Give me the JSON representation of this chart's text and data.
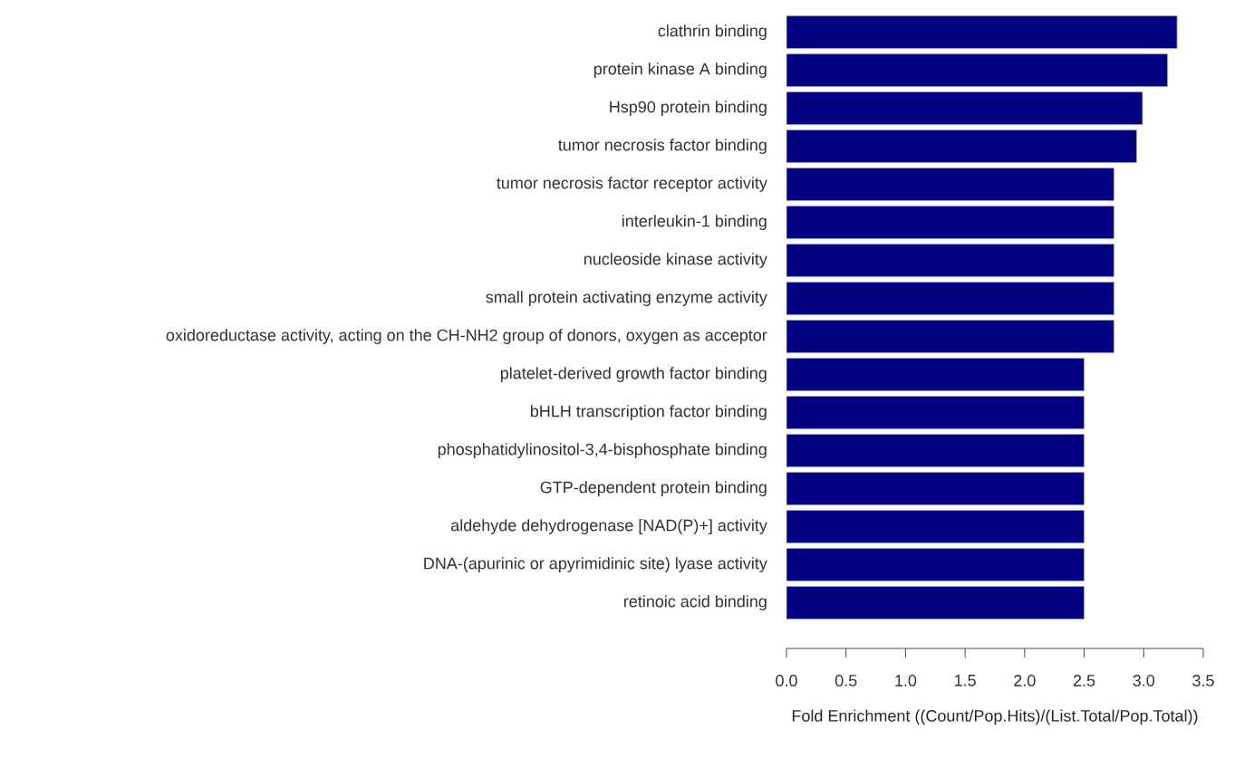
{
  "chart_data": {
    "type": "bar",
    "orientation": "horizontal",
    "categories": [
      "clathrin binding",
      "protein kinase A binding",
      "Hsp90 protein binding",
      "tumor necrosis factor binding",
      "tumor necrosis factor receptor activity",
      "interleukin-1 binding",
      "nucleoside kinase activity",
      "small protein activating enzyme activity",
      "oxidoreductase activity, acting on the CH-NH2 group of donors, oxygen as acceptor",
      "platelet-derived growth factor binding",
      "bHLH transcription factor binding",
      "phosphatidylinositol-3,4-bisphosphate binding",
      "GTP-dependent protein binding",
      "aldehyde dehydrogenase [NAD(P)+] activity",
      "DNA-(apurinic or apyrimidinic site) lyase activity",
      "retinoic acid binding"
    ],
    "values": [
      3.28,
      3.2,
      2.99,
      2.94,
      2.75,
      2.75,
      2.75,
      2.75,
      2.75,
      2.5,
      2.5,
      2.5,
      2.5,
      2.5,
      2.5,
      2.5
    ],
    "color": "#000080",
    "xlim": [
      0,
      3.5
    ],
    "xticks": [
      {
        "value": 0,
        "label": "0.0"
      },
      0.5,
      {
        "value": 1,
        "label": "1.0"
      },
      1.5,
      {
        "value": 2,
        "label": "2.0"
      },
      2.5,
      {
        "value": 3,
        "label": "3.0"
      },
      3.5
    ],
    "xlabel": "Fold Enrichment ((Count/Pop.Hits)/(List.Total/Pop.Total))"
  }
}
